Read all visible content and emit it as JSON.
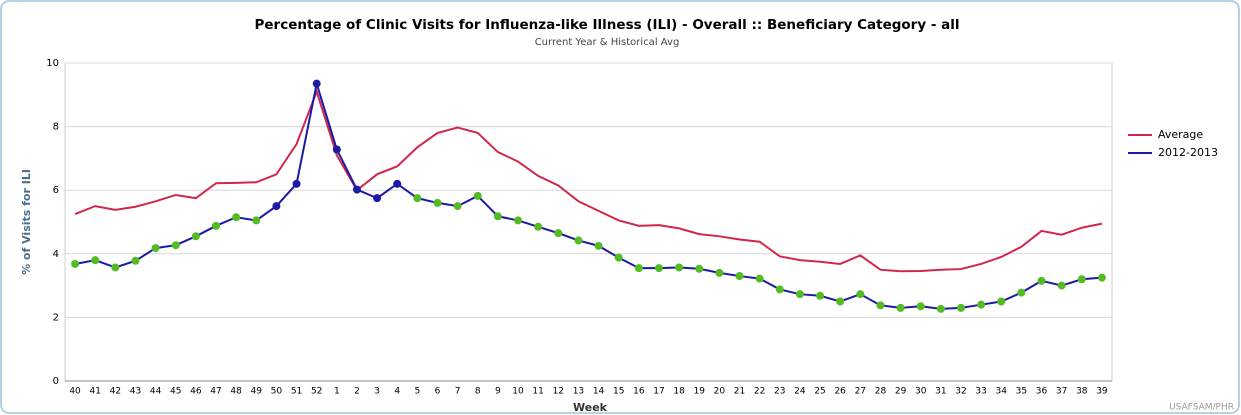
{
  "chart_data": {
    "type": "line",
    "title": "Percentage of Clinic Visits for Influenza-like Illness (ILI) - Overall :: Beneficiary Category - all",
    "subtitle": "Current Year & Historical Avg",
    "x_label": "Week",
    "y_label": "% of Visits for ILI",
    "credit": "USAFSAM/PHR",
    "categories": [
      "40",
      "41",
      "42",
      "43",
      "44",
      "45",
      "46",
      "47",
      "48",
      "49",
      "50",
      "51",
      "52",
      "1",
      "2",
      "3",
      "4",
      "5",
      "6",
      "7",
      "8",
      "9",
      "10",
      "11",
      "12",
      "13",
      "14",
      "15",
      "16",
      "17",
      "18",
      "19",
      "20",
      "21",
      "22",
      "23",
      "24",
      "25",
      "26",
      "27",
      "28",
      "29",
      "30",
      "31",
      "32",
      "33",
      "34",
      "35",
      "36",
      "37",
      "38",
      "39"
    ],
    "series": [
      {
        "name": "Average",
        "color": "#d0284c",
        "values": [
          5.25,
          5.5,
          5.38,
          5.48,
          5.65,
          5.85,
          5.75,
          6.22,
          6.23,
          6.25,
          6.5,
          7.45,
          9.1,
          7.1,
          6.0,
          6.5,
          6.75,
          7.35,
          7.8,
          7.97,
          7.8,
          7.2,
          6.9,
          6.45,
          6.15,
          5.65,
          5.35,
          5.05,
          4.88,
          4.9,
          4.8,
          4.62,
          4.55,
          4.45,
          4.38,
          3.92,
          3.8,
          3.75,
          3.68,
          3.95,
          3.5,
          3.45,
          3.46,
          3.5,
          3.52,
          3.68,
          3.9,
          4.22,
          4.72,
          4.6,
          4.82,
          4.95
        ]
      },
      {
        "name": "2012-2013",
        "color": "#1a1aa6",
        "values": [
          3.68,
          3.8,
          3.57,
          3.78,
          4.18,
          4.27,
          4.55,
          4.88,
          5.15,
          5.05,
          5.5,
          6.2,
          9.35,
          7.28,
          6.02,
          5.75,
          6.2,
          5.75,
          5.6,
          5.5,
          5.82,
          5.18,
          5.05,
          4.85,
          4.65,
          4.42,
          4.25,
          3.88,
          3.55,
          3.55,
          3.57,
          3.53,
          3.4,
          3.3,
          3.22,
          2.88,
          2.73,
          2.68,
          2.5,
          2.73,
          2.38,
          2.3,
          2.35,
          2.27,
          2.3,
          2.4,
          2.5,
          2.78,
          3.15,
          3.0,
          3.2,
          3.25
        ],
        "marker_colors": [
          "#55bb22",
          "#55bb22",
          "#55bb22",
          "#55bb22",
          "#55bb22",
          "#55bb22",
          "#55bb22",
          "#55bb22",
          "#55bb22",
          "#55bb22",
          "#1a1aa6",
          "#1a1aa6",
          "#1a1aa6",
          "#1a1aa6",
          "#1a1aa6",
          "#1a1aa6",
          "#1a1aa6",
          "#55bb22",
          "#55bb22",
          "#55bb22",
          "#55bb22",
          "#55bb22",
          "#55bb22",
          "#55bb22",
          "#55bb22",
          "#55bb22",
          "#55bb22",
          "#55bb22",
          "#55bb22",
          "#55bb22",
          "#55bb22",
          "#55bb22",
          "#55bb22",
          "#55bb22",
          "#55bb22",
          "#55bb22",
          "#55bb22",
          "#55bb22",
          "#55bb22",
          "#55bb22",
          "#55bb22",
          "#55bb22",
          "#55bb22",
          "#55bb22",
          "#55bb22",
          "#55bb22",
          "#55bb22",
          "#55bb22",
          "#55bb22",
          "#55bb22",
          "#55bb22",
          "#55bb22"
        ]
      }
    ],
    "ylim": [
      0,
      10
    ],
    "yticks": [
      0,
      2,
      4,
      6,
      8,
      10
    ],
    "grid": true,
    "legend": "right"
  }
}
